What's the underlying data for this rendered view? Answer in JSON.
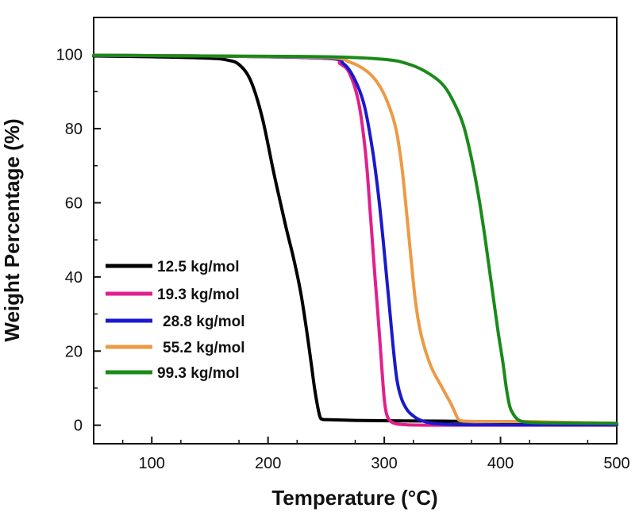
{
  "chart_data": {
    "type": "line",
    "title": "",
    "xlabel": "Temperature (°C)",
    "ylabel": "Weight Percentage (%)",
    "xlim": [
      50,
      500
    ],
    "ylim": [
      -5,
      110
    ],
    "xticks": [
      100,
      200,
      300,
      400,
      500
    ],
    "xtick_labels": [
      "100",
      "200",
      "300",
      "400",
      "500"
    ],
    "yticks": [
      0,
      20,
      40,
      60,
      80,
      100
    ],
    "ytick_labels": [
      "0",
      "20",
      "40",
      "60",
      "80",
      "100"
    ],
    "grid": false,
    "legend_position": "bottom-left",
    "series": [
      {
        "name": "12.5 kg/mol",
        "color": "#000000",
        "x": [
          50,
          100,
          150,
          165,
          175,
          185,
          195,
          205,
          215,
          222,
          228,
          233,
          237,
          240,
          243,
          245,
          247,
          250,
          275,
          300,
          350,
          400,
          450,
          500
        ],
        "y": [
          99.6,
          99.4,
          99.0,
          98.5,
          97.3,
          93,
          83,
          68,
          54,
          45,
          36,
          26,
          17,
          10,
          4.5,
          2.0,
          1.6,
          1.5,
          1.3,
          1.2,
          1.1,
          0.9,
          0.7,
          0.5
        ]
      },
      {
        "name": "19.3 kg/mol",
        "color": "#e0208c",
        "x": [
          50,
          150,
          250,
          262,
          270,
          278,
          284,
          288,
          292,
          295,
          298,
          300,
          302,
          305,
          310,
          320,
          350,
          400,
          450,
          500
        ],
        "y": [
          99.8,
          99.6,
          99.0,
          97.5,
          95,
          87,
          73,
          57,
          40,
          28,
          15,
          7,
          3,
          1.2,
          0.4,
          0.1,
          0,
          0,
          0,
          0
        ]
      },
      {
        "name": "28.8 kg/mol",
        "color": "#1a1acc",
        "x": [
          50,
          150,
          250,
          265,
          275,
          283,
          290,
          295,
          299,
          302,
          305,
          308,
          311,
          315,
          320,
          325,
          330,
          340,
          360,
          400,
          450,
          500
        ],
        "y": [
          99.8,
          99.6,
          99.0,
          97.5,
          93,
          86,
          74,
          62,
          50,
          40,
          30,
          20,
          12,
          7,
          4,
          2.5,
          1.5,
          0.6,
          0.2,
          0.1,
          0.1,
          0.1
        ]
      },
      {
        "name": "55.2 kg/mol",
        "color": "#ec9a45",
        "x": [
          50,
          150,
          250,
          270,
          285,
          295,
          303,
          310,
          315,
          319,
          323,
          327,
          332,
          340,
          350,
          357,
          360,
          363,
          366,
          380,
          420,
          450,
          500
        ],
        "y": [
          99.8,
          99.6,
          99.2,
          98,
          95.5,
          92,
          87,
          80,
          70,
          58,
          45,
          33,
          24,
          16,
          10,
          6,
          4,
          2,
          1.2,
          1.0,
          1.0,
          0.8,
          0.5
        ]
      },
      {
        "name": "99.3 kg/mol",
        "color": "#1a8a1a",
        "x": [
          50,
          150,
          250,
          300,
          320,
          335,
          350,
          360,
          368,
          375,
          381,
          386,
          390,
          394,
          398,
          402,
          405,
          408,
          411,
          415,
          420,
          430,
          450,
          500
        ],
        "y": [
          99.8,
          99.6,
          99.4,
          98.7,
          97.5,
          95.5,
          92,
          87,
          81,
          72,
          62,
          52,
          43,
          34,
          25,
          17,
          10,
          5,
          3,
          1.5,
          0.9,
          0.7,
          0.6,
          0.5
        ]
      }
    ]
  }
}
